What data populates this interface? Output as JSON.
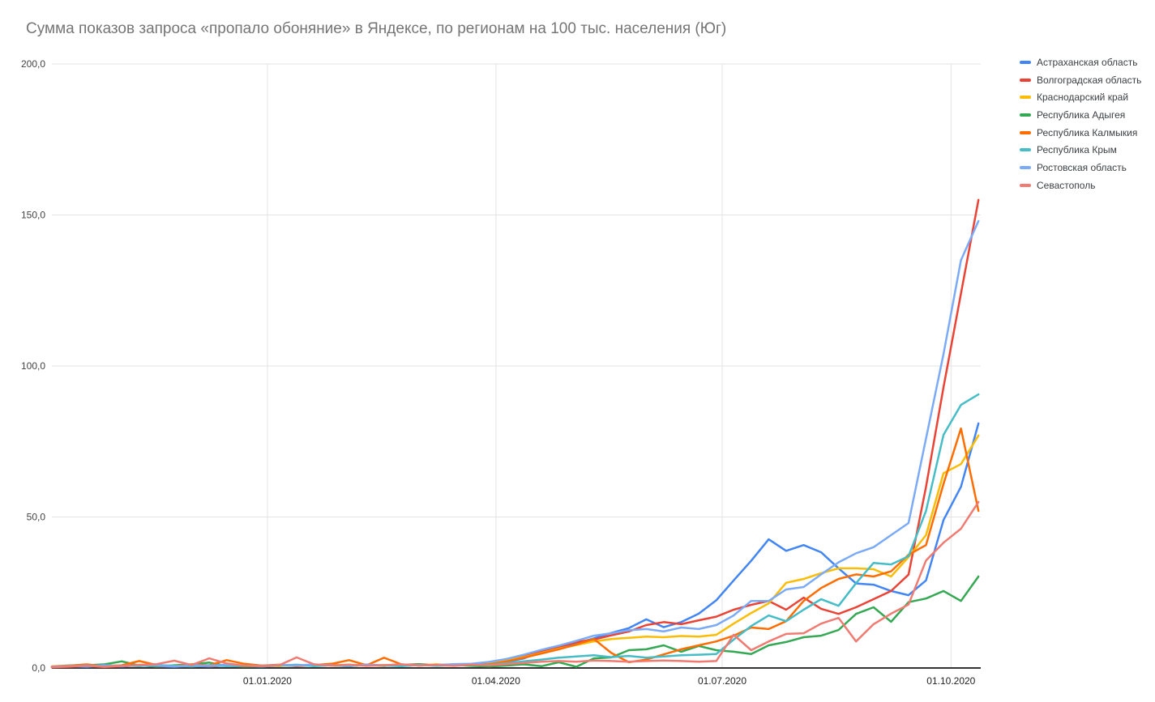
{
  "header": {
    "title": "Сумма показов запроса «пропало обоняние» в Яндексе, по регионам на 100 тыс. населения (Юг)"
  },
  "legend": {
    "position": "right",
    "items": [
      {
        "label": "Астраханская область",
        "color": "#4285F4"
      },
      {
        "label": "Волгоградская область",
        "color": "#EA4335"
      },
      {
        "label": "Краснодарский край",
        "color": "#FBBC04"
      },
      {
        "label": "Республика Адыгея",
        "color": "#34A853"
      },
      {
        "label": "Республика Калмыкия",
        "color": "#FF6D01"
      },
      {
        "label": "Республика Крым",
        "color": "#46BDC6"
      },
      {
        "label": "Ростовская область",
        "color": "#7BAAF7"
      },
      {
        "label": "Севастополь",
        "color": "#F07B72"
      }
    ]
  },
  "chart_data": {
    "type": "line",
    "title": "Сумма показов запроса «пропало обоняние» в Яндексе, по регионам на 100 тыс. населения (Юг)",
    "x_axis": {
      "unit": "weeks",
      "points_per_series": 54,
      "tick_labels": [
        "01.01.2020",
        "01.04.2020",
        "01.07.2020",
        "01.10.2020"
      ],
      "tick_week_positions": [
        12.33,
        25.4,
        38.34,
        51.43
      ]
    },
    "y_axis": {
      "tick_labels": [
        "0,0",
        "50,0",
        "100,0",
        "150,0",
        "200,0"
      ],
      "tick_values": [
        0,
        50,
        100,
        150,
        200
      ],
      "range": [
        0,
        200
      ]
    },
    "grid": true,
    "legend_position": "right",
    "series": [
      {
        "name": "Астраханская область",
        "color": "#4285F4",
        "values": [
          0.3,
          0.6,
          0.4,
          0.8,
          0.5,
          0.9,
          0.6,
          0.4,
          0.7,
          0.5,
          0.8,
          0.6,
          0.5,
          0.8,
          1.0,
          0.7,
          0.9,
          0.6,
          1.1,
          0.8,
          0.7,
          1.0,
          0.8,
          1.2,
          0.9,
          1.5,
          2.0,
          3.2,
          5.4,
          6.6,
          8.2,
          9.8,
          11.6,
          13.2,
          16.1,
          13.5,
          15.2,
          18.0,
          22.4,
          29.0,
          35.5,
          42.6,
          38.8,
          40.7,
          38.3,
          33.0,
          28.0,
          27.6,
          25.5,
          24.1,
          29.0,
          49.0,
          60.0,
          81.0
        ]
      },
      {
        "name": "Волгоградская область",
        "color": "#EA4335",
        "values": [
          0.2,
          0.4,
          0.7,
          0.3,
          0.6,
          0.9,
          0.5,
          0.7,
          1.0,
          0.6,
          0.8,
          0.5,
          0.7,
          1.0,
          0.6,
          0.9,
          1.2,
          0.8,
          1.1,
          0.7,
          1.0,
          1.3,
          0.9,
          1.2,
          1.0,
          1.4,
          2.6,
          4.0,
          5.6,
          7.0,
          8.6,
          9.4,
          10.8,
          12.1,
          14.2,
          15.2,
          14.5,
          15.8,
          17.0,
          19.3,
          20.9,
          22.2,
          19.3,
          23.3,
          19.6,
          17.9,
          20.1,
          22.8,
          25.5,
          30.9,
          60.0,
          93.0,
          124.0,
          155.0
        ]
      },
      {
        "name": "Краснодарский край",
        "color": "#FBBC04",
        "values": [
          0.5,
          0.9,
          0.6,
          1.0,
          0.7,
          1.1,
          0.8,
          0.6,
          0.9,
          0.7,
          1.0,
          0.8,
          0.8,
          0.6,
          1.0,
          0.7,
          0.9,
          1.1,
          0.8,
          1.0,
          0.7,
          0.9,
          1.2,
          0.8,
          1.1,
          1.6,
          2.4,
          3.6,
          5.0,
          6.4,
          7.6,
          8.8,
          9.6,
          10.0,
          10.4,
          10.2,
          10.6,
          10.4,
          11.0,
          14.7,
          18.2,
          21.4,
          28.2,
          29.5,
          31.4,
          33.0,
          33.0,
          32.7,
          30.3,
          36.7,
          44.0,
          64.5,
          67.5,
          77.0
        ]
      },
      {
        "name": "Республика Адыгея",
        "color": "#34A853",
        "values": [
          0.4,
          0.7,
          0.9,
          1.2,
          2.2,
          0.8,
          0.5,
          0.9,
          1.2,
          1.8,
          0.7,
          0.5,
          0.6,
          0.9,
          0.7,
          1.1,
          0.8,
          0.6,
          1.0,
          0.7,
          0.9,
          1.2,
          0.8,
          1.0,
          0.7,
          0.5,
          0.8,
          1.2,
          0.6,
          1.9,
          0.4,
          3.2,
          3.5,
          5.9,
          6.2,
          7.5,
          5.4,
          7.3,
          5.9,
          5.4,
          4.6,
          7.5,
          8.6,
          10.2,
          10.7,
          12.6,
          17.9,
          20.1,
          15.3,
          21.8,
          23.0,
          25.5,
          22.2,
          30.3
        ]
      },
      {
        "name": "Республика Калмыкия",
        "color": "#FF6D01",
        "values": [
          0.5,
          0.8,
          1.2,
          0.6,
          0.9,
          2.3,
          1.0,
          0.6,
          1.2,
          0.9,
          2.6,
          1.4,
          0.8,
          1.1,
          0.7,
          1.0,
          1.4,
          2.6,
          0.9,
          3.4,
          1.2,
          0.8,
          1.1,
          0.9,
          1.3,
          1.2,
          2.2,
          3.4,
          4.8,
          6.2,
          7.8,
          9.6,
          5.0,
          1.9,
          2.8,
          4.5,
          6.2,
          7.5,
          8.8,
          10.7,
          13.4,
          12.9,
          15.5,
          22.2,
          26.5,
          29.5,
          31.0,
          30.3,
          32.0,
          37.5,
          40.7,
          61.0,
          79.3,
          52.0
        ]
      },
      {
        "name": "Республика Крым",
        "color": "#46BDC6",
        "values": [
          0.3,
          0.6,
          0.9,
          0.5,
          0.8,
          0.6,
          1.0,
          0.7,
          0.5,
          0.9,
          0.6,
          0.8,
          0.5,
          0.8,
          1.1,
          0.6,
          0.9,
          0.7,
          1.0,
          0.8,
          0.6,
          1.0,
          0.7,
          0.9,
          1.1,
          1.0,
          1.6,
          2.2,
          2.8,
          3.4,
          3.8,
          4.2,
          3.6,
          4.0,
          3.4,
          3.8,
          4.2,
          4.4,
          4.6,
          9.4,
          13.9,
          17.4,
          15.5,
          19.3,
          22.8,
          20.6,
          28.1,
          34.8,
          34.3,
          37.0,
          52.0,
          77.2,
          87.1,
          90.6
        ]
      },
      {
        "name": "Ростовская область",
        "color": "#7BAAF7",
        "values": [
          0.4,
          0.7,
          0.5,
          0.9,
          0.6,
          1.0,
          0.8,
          0.5,
          0.9,
          0.7,
          1.1,
          0.8,
          0.7,
          1.0,
          0.8,
          1.2,
          0.9,
          0.7,
          1.1,
          0.9,
          1.2,
          0.8,
          1.0,
          1.3,
          1.4,
          2.0,
          3.0,
          4.4,
          6.0,
          7.4,
          9.0,
          10.7,
          11.5,
          12.5,
          12.9,
          12.1,
          13.4,
          12.9,
          14.2,
          17.4,
          22.2,
          22.2,
          26.0,
          26.8,
          31.0,
          35.0,
          38.0,
          40.0,
          44.0,
          48.0,
          76.0,
          104.0,
          135.0,
          148.0
        ]
      },
      {
        "name": "Севастополь",
        "color": "#F07B72",
        "values": [
          0.3,
          0.5,
          0.8,
          0.4,
          0.7,
          1.0,
          1.3,
          2.4,
          1.0,
          3.2,
          1.5,
          0.8,
          0.6,
          0.9,
          3.5,
          1.2,
          0.8,
          1.1,
          0.7,
          0.9,
          1.2,
          0.8,
          1.0,
          0.7,
          1.1,
          0.9,
          1.3,
          1.7,
          2.1,
          2.3,
          2.1,
          2.5,
          2.3,
          2.1,
          2.3,
          2.5,
          2.3,
          2.1,
          2.3,
          11.0,
          5.9,
          8.8,
          11.3,
          11.5,
          14.7,
          16.6,
          8.8,
          14.5,
          18.0,
          21.0,
          35.6,
          41.5,
          46.1,
          55.0
        ]
      }
    ]
  },
  "style_colors": {
    "gridline": "#e3e3e3",
    "axis_line": "#333333",
    "title_text": "#757575",
    "axis_text": "#424242",
    "legend_text": "#3c4043"
  }
}
